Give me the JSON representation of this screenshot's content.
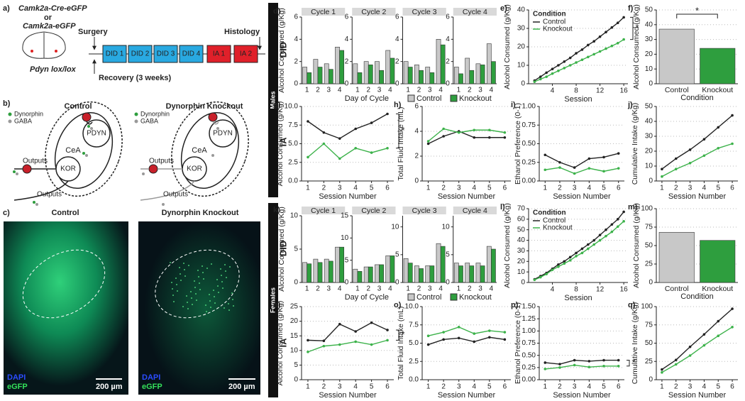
{
  "figure": {
    "a": {
      "label": "a)",
      "line1": "Camk2a-Cre-eGFP",
      "or": "or",
      "line2": "Camk2a-eGFP",
      "strain": "Pdyn lox/lox",
      "surgery": "Surgery",
      "histology": "Histology",
      "recovery": "Recovery (3 weeks)",
      "boxes": [
        "DID 1",
        "DID 2",
        "DID 3",
        "DID 4",
        "IA 1",
        "IA 2"
      ]
    },
    "b": {
      "label": "b)",
      "control": {
        "title": "Control",
        "dynorphin": "Dynorphin",
        "gaba": "GABA",
        "cea": "CeA",
        "pdyn": "PDYN",
        "kor": "KOR",
        "outputs": [
          "Outputs",
          "Outputs"
        ]
      },
      "knockout": {
        "title": "Dynorphin Knockout",
        "dynorphin": "Dynorphin",
        "gaba": "GABA",
        "cea": "CeA",
        "pdyn": "PDYN",
        "kor": "KOR",
        "outputs": [
          "Outputs",
          "Outputs"
        ]
      }
    },
    "c": {
      "label": "c)",
      "control": {
        "title": "Control",
        "dapi": "DAPI",
        "egfp": "eGFP",
        "scale": "200 µm"
      },
      "knockout": {
        "title": "Dynorphin Knockout",
        "dapi": "DAPI",
        "egfp": "eGFP",
        "scale": "200 µm"
      }
    },
    "side": {
      "males": "Males",
      "females": "Females",
      "did_m": "DID",
      "ia_m": "IA",
      "did_f": "DID",
      "ia_f": "IA"
    }
  },
  "chart_data": [
    {
      "type": "facet-bar",
      "label": "d)",
      "ylabel": "Alcohol Consumed (g/Kg)",
      "xlabel": "Day of Cycle",
      "categories": [
        "1",
        "2",
        "3",
        "4"
      ],
      "series": [
        {
          "name": "Control",
          "color": "#c8c8c8"
        },
        {
          "name": "Knockout",
          "color": "#2e9e3e"
        }
      ],
      "facets": [
        {
          "title": "Cycle 1",
          "ylim": [
            0,
            6
          ],
          "yticks": [
            0,
            2,
            4,
            6
          ],
          "values": [
            [
              1.5,
              2.2,
              1.8,
              3.3
            ],
            [
              1.0,
              1.5,
              1.3,
              3.0
            ]
          ]
        },
        {
          "title": "Cycle 2",
          "ylim": [
            0,
            6
          ],
          "yticks": [
            0,
            2,
            4,
            6
          ],
          "values": [
            [
              1.8,
              2.0,
              2.0,
              3.0
            ],
            [
              1.0,
              1.7,
              1.2,
              2.3
            ]
          ]
        },
        {
          "title": "Cycle 3",
          "ylim": [
            0,
            6
          ],
          "yticks": [
            0,
            2,
            4,
            6
          ],
          "values": [
            [
              2.0,
              1.7,
              1.5,
              4.0
            ],
            [
              1.5,
              1.2,
              1.0,
              3.5
            ]
          ]
        },
        {
          "title": "Cycle 4",
          "ylim": [
            0,
            6
          ],
          "yticks": [
            0,
            2,
            4,
            6
          ],
          "values": [
            [
              1.5,
              2.3,
              1.8,
              3.6
            ],
            [
              0.9,
              1.2,
              1.7,
              2.0
            ]
          ]
        }
      ]
    },
    {
      "type": "line",
      "label": "e)",
      "ylabel": "Alcohol Consumed (g/Kg)",
      "xlabel": "Session",
      "legend_title": "Condition",
      "legend": "upper left",
      "grid": true,
      "annotation": "*",
      "x": [
        1,
        2,
        3,
        4,
        5,
        6,
        7,
        8,
        9,
        10,
        11,
        12,
        13,
        14,
        15,
        16
      ],
      "xlim": [
        0,
        16.7
      ],
      "xticks": [
        4,
        8,
        12,
        16
      ],
      "ylim": [
        0,
        40
      ],
      "yticks": [
        0,
        10,
        20,
        30,
        40
      ],
      "series": [
        {
          "name": "Control",
          "color": "#222222",
          "values": [
            1.7,
            3.8,
            6,
            8,
            10,
            12,
            14,
            16.5,
            18.5,
            21,
            23,
            25.5,
            28,
            30.5,
            33,
            36
          ]
        },
        {
          "name": "Knockout",
          "color": "#3cb24a",
          "values": [
            1.1,
            2.5,
            3.8,
            5.5,
            7,
            8.5,
            10,
            11.5,
            13,
            14.5,
            16,
            17.5,
            19,
            20.5,
            22,
            24
          ]
        }
      ]
    },
    {
      "type": "bar",
      "label": "f)",
      "ylabel": "Alcohol Consumed (g/Kg)",
      "xlabel": "Condition",
      "grid": true,
      "annotation": "*",
      "categories": [
        "Control",
        "Knockout"
      ],
      "values": [
        37,
        24
      ],
      "colors": [
        "#c8c8c8",
        "#2e9e3e"
      ],
      "ylim": [
        0,
        50
      ],
      "yticks": [
        0,
        10,
        20,
        30,
        40,
        50
      ]
    },
    {
      "type": "line",
      "label": "g)",
      "ylabel": "Alcohol Consumed (g/Kg)",
      "xlabel": "Session Number",
      "grid": true,
      "annotation": "*",
      "x": [
        1,
        2,
        3,
        4,
        5,
        6
      ],
      "xlim": [
        0.6,
        6.4
      ],
      "xticks": [
        1,
        2,
        3,
        4,
        5,
        6
      ],
      "ylim": [
        0,
        10
      ],
      "yticks": [
        {
          "value": 0,
          "label": "0.0"
        },
        2.5,
        {
          "value": 5,
          "label": "5.0"
        },
        7.5,
        {
          "value": 10,
          "label": "10.0"
        }
      ],
      "series": [
        {
          "name": "Control",
          "color": "#222222",
          "values": [
            8,
            6.5,
            5.7,
            7,
            7.8,
            9
          ]
        },
        {
          "name": "Knockout",
          "color": "#3cb24a",
          "values": [
            3.2,
            5,
            3,
            4.4,
            3.8,
            4.4
          ]
        }
      ]
    },
    {
      "type": "line",
      "label": "h)",
      "ylabel": "Total Fluid Intake (mL)",
      "xlabel": "Session Number",
      "grid": true,
      "x": [
        1,
        2,
        3,
        4,
        5,
        6
      ],
      "xlim": [
        0.6,
        6.4
      ],
      "xticks": [
        1,
        2,
        3,
        4,
        5,
        6
      ],
      "ylim": [
        0,
        6
      ],
      "yticks": [
        0,
        2,
        4,
        6
      ],
      "series": [
        {
          "name": "Control",
          "color": "#222222",
          "values": [
            3,
            3.6,
            4,
            3.5,
            3.5,
            3.5
          ]
        },
        {
          "name": "Knockout",
          "color": "#3cb24a",
          "values": [
            3.2,
            4.2,
            3.9,
            4.1,
            4.1,
            3.9
          ]
        }
      ]
    },
    {
      "type": "line",
      "label": "i)",
      "ylabel": "Ethanol Preference (0-1)",
      "xlabel": "Session Number",
      "grid": true,
      "x": [
        1,
        2,
        3,
        4,
        5,
        6
      ],
      "xlim": [
        0.6,
        6.4
      ],
      "xticks": [
        1,
        2,
        3,
        4,
        5,
        6
      ],
      "ylim": [
        0,
        1
      ],
      "yticks": [
        {
          "value": 0,
          "label": "0.00"
        },
        0.25,
        {
          "value": 0.5,
          "label": "0.50"
        },
        0.75,
        {
          "value": 1,
          "label": "1.00"
        }
      ],
      "series": [
        {
          "name": "Control",
          "color": "#222222",
          "values": [
            0.35,
            0.25,
            0.18,
            0.3,
            0.32,
            0.37
          ]
        },
        {
          "name": "Knockout",
          "color": "#3cb24a",
          "values": [
            0.15,
            0.18,
            0.1,
            0.17,
            0.13,
            0.17
          ]
        }
      ]
    },
    {
      "type": "line",
      "label": "j)",
      "ylabel": "Cumulative Intake (g/Kg)",
      "xlabel": "Session Number",
      "grid": true,
      "x": [
        1,
        2,
        3,
        4,
        5,
        6
      ],
      "xlim": [
        0.6,
        6.4
      ],
      "xticks": [
        1,
        2,
        3,
        4,
        5,
        6
      ],
      "ylim": [
        0,
        50
      ],
      "yticks": [
        0,
        10,
        20,
        30,
        40,
        50
      ],
      "series": [
        {
          "name": "Control",
          "color": "#222222",
          "values": [
            8,
            15,
            21,
            28,
            36,
            44
          ]
        },
        {
          "name": "Knockout",
          "color": "#3cb24a",
          "values": [
            3,
            8,
            12,
            17,
            22,
            25
          ]
        }
      ]
    },
    {
      "type": "facet-bar",
      "label": "k)",
      "ylabel": "Alcohol Consumed (g/Kg)",
      "xlabel": "Day of Cycle",
      "categories": [
        "1",
        "2",
        "3",
        "4"
      ],
      "series": [
        {
          "name": "Control",
          "color": "#c8c8c8"
        },
        {
          "name": "Knockout",
          "color": "#2e9e3e"
        }
      ],
      "facets": [
        {
          "title": "Cycle 1",
          "ylim": [
            0,
            10
          ],
          "yticks": [
            0,
            5,
            10
          ],
          "values": [
            [
              3,
              3.5,
              3.5,
              5.3
            ],
            [
              2.8,
              3,
              3.2,
              5.3
            ]
          ]
        },
        {
          "title": "Cycle 2",
          "ylim": [
            0,
            15
          ],
          "yticks": [
            0,
            5,
            10,
            15
          ],
          "values": [
            [
              3,
              3.5,
              4,
              6
            ],
            [
              2.5,
              3.5,
              4,
              6
            ]
          ]
        },
        {
          "title": "Cycle 3",
          "ylim": [
            0,
            12
          ],
          "yticks": [
            0,
            5,
            10
          ],
          "values": [
            [
              4.3,
              3,
              3,
              7
            ],
            [
              3.5,
              2.5,
              3,
              6.5
            ]
          ]
        },
        {
          "title": "Cycle 4",
          "ylim": [
            0,
            12
          ],
          "yticks": [
            0,
            5,
            10
          ],
          "values": [
            [
              3.5,
              3.5,
              3.5,
              6.5
            ],
            [
              3,
              3,
              3,
              6
            ]
          ]
        }
      ]
    },
    {
      "type": "line",
      "label": "l)",
      "ylabel": "Alcohol Consumed (g/Kg)",
      "xlabel": "Session",
      "legend_title": "Condition",
      "legend": "upper left",
      "grid": true,
      "x": [
        1,
        2,
        3,
        4,
        5,
        6,
        7,
        8,
        9,
        10,
        11,
        12,
        13,
        14,
        15,
        16
      ],
      "xlim": [
        0,
        16.7
      ],
      "xticks": [
        4,
        8,
        12,
        16
      ],
      "ylim": [
        0,
        70
      ],
      "yticks": [
        0,
        10,
        20,
        30,
        40,
        50,
        60,
        70
      ],
      "series": [
        {
          "name": "Control",
          "color": "#222222",
          "values": [
            3,
            6,
            9,
            13,
            17,
            20,
            24,
            28,
            32,
            36,
            40,
            45,
            50,
            55,
            60,
            67
          ]
        },
        {
          "name": "Knockout",
          "color": "#3cb24a",
          "values": [
            2.5,
            5,
            8,
            12,
            15,
            18,
            21,
            25,
            28,
            32,
            36,
            40,
            44,
            48,
            53,
            58
          ]
        }
      ]
    },
    {
      "type": "bar",
      "label": "m)",
      "ylabel": "Alcohol Consumed (g/Kg)",
      "xlabel": "Condition",
      "grid": true,
      "categories": [
        "Control",
        "Knockout"
      ],
      "values": [
        68,
        57
      ],
      "colors": [
        "#c8c8c8",
        "#2e9e3e"
      ],
      "ylim": [
        0,
        100
      ],
      "yticks": [
        0,
        25,
        50,
        75,
        100
      ]
    },
    {
      "type": "line",
      "label": "n)",
      "ylabel": "Alcohol Consumed (g/Kg)",
      "xlabel": "Session Number",
      "grid": true,
      "annotation": "*",
      "x": [
        1,
        2,
        3,
        4,
        5,
        6
      ],
      "xlim": [
        0.6,
        6.4
      ],
      "xticks": [
        1,
        2,
        3,
        4,
        5,
        6
      ],
      "ylim": [
        0,
        25
      ],
      "yticks": [
        0,
        5,
        10,
        15,
        20,
        25
      ],
      "series": [
        {
          "name": "Control",
          "color": "#222222",
          "values": [
            13.5,
            13.3,
            19,
            16.5,
            19.5,
            17
          ]
        },
        {
          "name": "Knockout",
          "color": "#3cb24a",
          "values": [
            9.5,
            11.5,
            12,
            13,
            12,
            13.5
          ]
        }
      ]
    },
    {
      "type": "line",
      "label": "o)",
      "ylabel": "Total Fluid Intake (mL)",
      "xlabel": "Session Number",
      "grid": true,
      "x": [
        1,
        2,
        3,
        4,
        5,
        6
      ],
      "xlim": [
        0.6,
        6.4
      ],
      "xticks": [
        1,
        2,
        3,
        4,
        5,
        6
      ],
      "ylim": [
        0,
        10
      ],
      "yticks": [
        {
          "value": 0,
          "label": "0.0"
        },
        2.5,
        {
          "value": 5,
          "label": "5.0"
        },
        7.5,
        {
          "value": 10,
          "label": "10.0"
        }
      ],
      "series": [
        {
          "name": "Control",
          "color": "#222222",
          "values": [
            4.8,
            5.5,
            5.7,
            5.2,
            5.8,
            5.5
          ]
        },
        {
          "name": "Knockout",
          "color": "#3cb24a",
          "values": [
            6,
            6.5,
            7.2,
            6.3,
            6.7,
            6.5
          ]
        }
      ]
    },
    {
      "type": "line",
      "label": "p)",
      "ylabel": "Ethanol Preference (0-1)",
      "xlabel": "Session Number",
      "grid": true,
      "annotation": "*",
      "x": [
        1,
        2,
        3,
        4,
        5,
        6
      ],
      "xlim": [
        0.6,
        6.4
      ],
      "xticks": [
        1,
        2,
        3,
        4,
        5,
        6
      ],
      "ylim": [
        0,
        1.5
      ],
      "yticks": [
        {
          "value": 0,
          "label": "0.00"
        },
        0.25,
        {
          "value": 0.5,
          "label": "0.50"
        },
        0.75,
        {
          "value": 1,
          "label": "1.00"
        },
        1.25,
        {
          "value": 1.5,
          "label": "1.50"
        }
      ],
      "series": [
        {
          "name": "Control",
          "color": "#222222",
          "values": [
            0.35,
            0.32,
            0.4,
            0.38,
            0.4,
            0.4
          ]
        },
        {
          "name": "Knockout",
          "color": "#3cb24a",
          "values": [
            0.22,
            0.25,
            0.3,
            0.26,
            0.28,
            0.28
          ]
        }
      ]
    },
    {
      "type": "line",
      "label": "q)",
      "ylabel": "Cumulative Intake (g/Kg)",
      "xlabel": "Session Number",
      "grid": true,
      "x": [
        1,
        2,
        3,
        4,
        5,
        6
      ],
      "xlim": [
        0.6,
        6.4
      ],
      "xticks": [
        1,
        2,
        3,
        4,
        5,
        6
      ],
      "ylim": [
        0,
        100
      ],
      "yticks": [
        0,
        25,
        50,
        75,
        100
      ],
      "series": [
        {
          "name": "Control",
          "color": "#222222",
          "values": [
            14,
            27,
            45,
            62,
            80,
            97
          ]
        },
        {
          "name": "Knockout",
          "color": "#3cb24a",
          "values": [
            10,
            21,
            33,
            47,
            60,
            72
          ]
        }
      ]
    }
  ]
}
